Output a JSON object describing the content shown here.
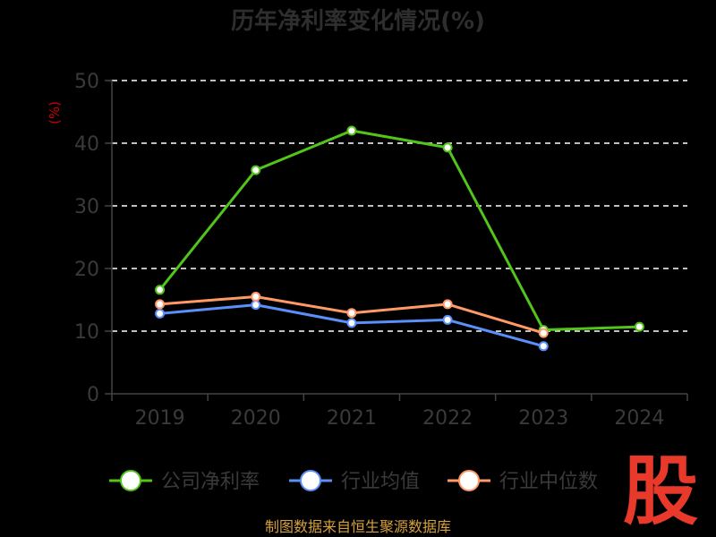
{
  "chart_data": {
    "type": "line",
    "title": "历年净利率变化情况(%)",
    "ylabel": "(%)",
    "xlabel": "",
    "categories": [
      "2019",
      "2020",
      "2021",
      "2022",
      "2023",
      "2024"
    ],
    "ylim": [
      0,
      50
    ],
    "yticks": [
      0,
      10,
      20,
      30,
      40,
      50
    ],
    "grid": true,
    "legend_position": "bottom",
    "series": [
      {
        "name": "公司净利率",
        "color": "#52c41a",
        "values": [
          16.6,
          35.7,
          42.0,
          39.3,
          10.2,
          10.7
        ]
      },
      {
        "name": "行业均值",
        "color": "#5b8ff9",
        "values": [
          12.8,
          14.2,
          11.3,
          11.8,
          7.6,
          null
        ]
      },
      {
        "name": "行业中位数",
        "color": "#ff9966",
        "values": [
          14.3,
          15.5,
          12.9,
          14.3,
          9.7,
          null
        ]
      }
    ]
  },
  "source": "制图数据来自恒生聚源数据库",
  "logo_text": "股"
}
